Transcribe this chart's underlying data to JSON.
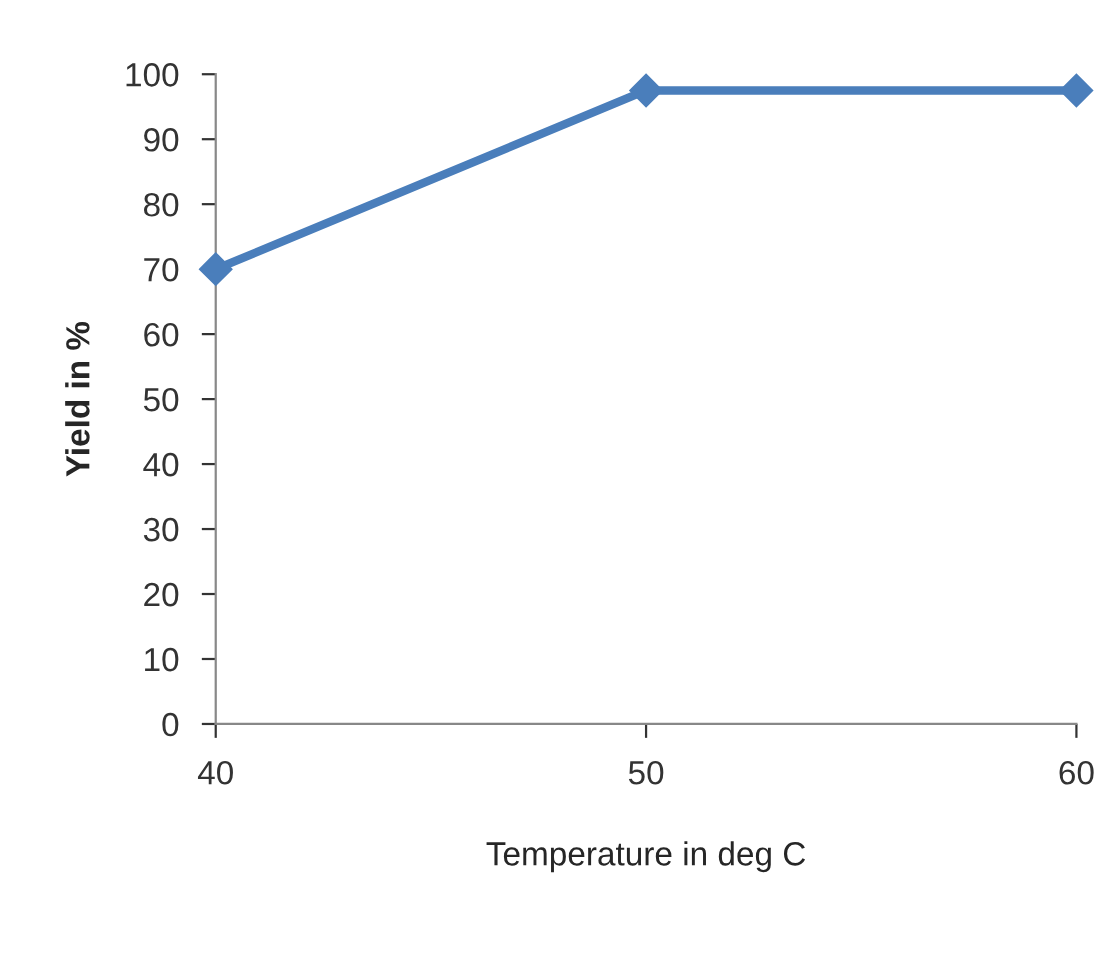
{
  "chart_data": {
    "type": "line",
    "xlabel": "Temperature in deg C",
    "ylabel": "Yield in %",
    "x": [
      40,
      50,
      60
    ],
    "series": [
      {
        "color": "#4a7ebb",
        "values": [
          70,
          97.5,
          97.5
        ]
      }
    ],
    "xlim": [
      40,
      60
    ],
    "xticks": [
      40,
      50,
      60
    ],
    "ylim": [
      0,
      100
    ],
    "yticks": [
      0,
      10,
      20,
      30,
      40,
      50,
      60,
      70,
      80,
      90,
      100
    ],
    "grid": false,
    "marker": "diamond",
    "line_style": "solid"
  }
}
